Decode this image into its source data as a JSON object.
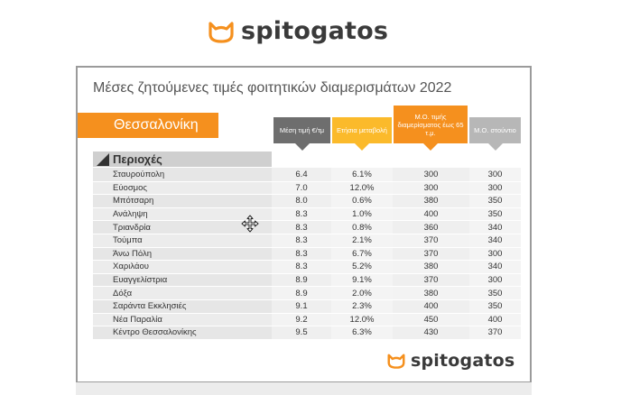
{
  "brand": {
    "name": "spitogatos",
    "accent": "#f5901e",
    "icon": "cat-head-icon"
  },
  "title": "Μέσες ζητούμενες τιμές φοιτητικών διαμερισμάτων 2022",
  "city": "Θεσσαλονίκη",
  "columns": {
    "avg_price": "Μέση τιμή €/τμ",
    "annual_change": "Ετήσια μεταβολή",
    "avg_rent_65": "Μ.Ο. τιμής διαμερίσματος έως 65 τ.μ.",
    "avg_studio": "Μ.Ο. στούντιο"
  },
  "regions_label": "Περιοχές",
  "rows": [
    {
      "area": "Σταυρούπολη",
      "price": "6.4",
      "change": "6.1%",
      "rent65": "300",
      "studio": "300"
    },
    {
      "area": "Εύοσμος",
      "price": "7.0",
      "change": "12.0%",
      "rent65": "300",
      "studio": "300"
    },
    {
      "area": "Μπότσαρη",
      "price": "8.0",
      "change": "0.6%",
      "rent65": "380",
      "studio": "350"
    },
    {
      "area": "Ανάληψη",
      "price": "8.3",
      "change": "1.0%",
      "rent65": "400",
      "studio": "350"
    },
    {
      "area": "Τριανδρία",
      "price": "8.3",
      "change": "0.8%",
      "rent65": "360",
      "studio": "340"
    },
    {
      "area": "Τούμπα",
      "price": "8.3",
      "change": "2.1%",
      "rent65": "370",
      "studio": "340"
    },
    {
      "area": "Άνω Πόλη",
      "price": "8.3",
      "change": "6.7%",
      "rent65": "370",
      "studio": "300"
    },
    {
      "area": "Χαριλάου",
      "price": "8.3",
      "change": "5.2%",
      "rent65": "380",
      "studio": "340"
    },
    {
      "area": "Ευαγγελίστρια",
      "price": "8.9",
      "change": "9.1%",
      "rent65": "370",
      "studio": "300"
    },
    {
      "area": "Δόξα",
      "price": "8.9",
      "change": "2.0%",
      "rent65": "380",
      "studio": "350"
    },
    {
      "area": "Σαράντα Εκκλησιές",
      "price": "9.1",
      "change": "2.3%",
      "rent65": "400",
      "studio": "350"
    },
    {
      "area": "Νέα Παραλία",
      "price": "9.2",
      "change": "12.0%",
      "rent65": "450",
      "studio": "400"
    },
    {
      "area": "Κέντρο Θεσσαλονίκης",
      "price": "9.5",
      "change": "6.3%",
      "rent65": "430",
      "studio": "370"
    }
  ],
  "colors": {
    "orange": "#f5901e",
    "yellow": "#fbba2b",
    "dark_grey": "#6e6e6e",
    "light_grey": "#b7b7b7"
  }
}
